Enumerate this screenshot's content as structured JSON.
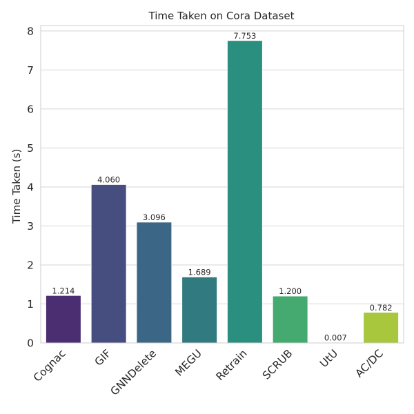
{
  "chart_data": {
    "type": "bar",
    "title": "Time Taken on Cora Dataset",
    "xlabel": "",
    "ylabel": "Time Taken (s)",
    "categories": [
      "Cognac",
      "GIF",
      "GNNDelete",
      "MEGU",
      "Retrain",
      "SCRUB",
      "UtU",
      "AC/DC"
    ],
    "values": [
      1.214,
      4.06,
      3.096,
      1.689,
      7.753,
      1.2,
      0.007,
      0.782
    ],
    "value_labels": [
      "1.214",
      "4.060",
      "3.096",
      "1.689",
      "7.753",
      "1.200",
      "0.007",
      "0.782"
    ],
    "colors": [
      "#4b2e72",
      "#464e80",
      "#3b6686",
      "#307a80",
      "#2b8f7f",
      "#45aa6f",
      "#7fc152",
      "#a8c73d"
    ],
    "ylim": [
      0,
      8.14
    ],
    "yticks": [
      0,
      1,
      2,
      3,
      4,
      5,
      6,
      7,
      8
    ],
    "grid": true,
    "legend": "none"
  }
}
